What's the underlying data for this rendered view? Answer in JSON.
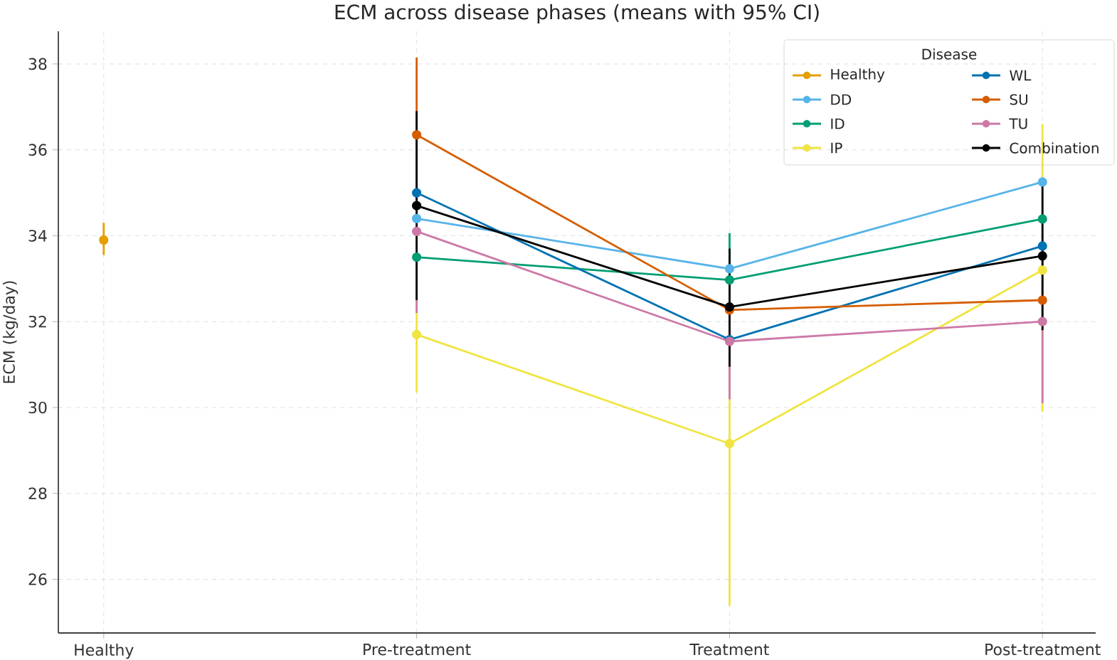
{
  "chart_data": {
    "type": "line",
    "title": "ECM across disease phases (means with 95% CI)",
    "ylabel": "ECM (kg/day)",
    "legend_title": "Disease",
    "categories": [
      "Healthy",
      "Pre-treatment",
      "Treatment",
      "Post-treatment"
    ],
    "ylim": [
      24.75,
      38.76
    ],
    "yticks": [
      26,
      28,
      30,
      32,
      34,
      36,
      38
    ],
    "grid": true,
    "legend": "top right",
    "marker": "circle",
    "line_style": "solid",
    "series": [
      {
        "name": "Healthy",
        "color": "#e69f00",
        "values": [
          33.9,
          null,
          null,
          null
        ],
        "errors": [
          [
            33.55,
            34.3
          ],
          null,
          null,
          null
        ]
      },
      {
        "name": "DD",
        "color": "#56b4e9",
        "values": [
          null,
          34.4,
          33.23,
          35.25
        ],
        "errors": [
          null,
          null,
          null,
          null
        ]
      },
      {
        "name": "ID",
        "color": "#009e73",
        "values": [
          null,
          33.5,
          32.97,
          34.39
        ],
        "errors": [
          null,
          null,
          [
            31.9,
            34.06
          ],
          null
        ]
      },
      {
        "name": "IP",
        "color": "#f0e442",
        "values": [
          null,
          31.7,
          29.16,
          33.2
        ],
        "errors": [
          null,
          [
            30.35,
            33.05
          ],
          [
            25.38,
            32.94
          ],
          [
            29.9,
            36.6
          ]
        ]
      },
      {
        "name": "WL",
        "color": "#0072b2",
        "values": [
          null,
          35.0,
          31.58,
          33.76
        ],
        "errors": [
          null,
          null,
          null,
          null
        ]
      },
      {
        "name": "SU",
        "color": "#d55e00",
        "values": [
          null,
          36.35,
          32.27,
          32.5
        ],
        "errors": [
          null,
          [
            34.55,
            38.15
          ],
          null,
          null
        ]
      },
      {
        "name": "TU",
        "color": "#cc79a7",
        "values": [
          null,
          34.1,
          31.54,
          32.0
        ],
        "errors": [
          null,
          [
            32.2,
            36.0
          ],
          [
            30.19,
            32.9
          ],
          [
            30.1,
            33.9
          ]
        ]
      },
      {
        "name": "Combination",
        "color": "#000000",
        "values": [
          null,
          34.7,
          32.34,
          33.53
        ],
        "errors": [
          null,
          [
            32.5,
            36.9
          ],
          [
            30.95,
            33.7
          ],
          [
            31.8,
            35.3
          ]
        ]
      }
    ]
  }
}
